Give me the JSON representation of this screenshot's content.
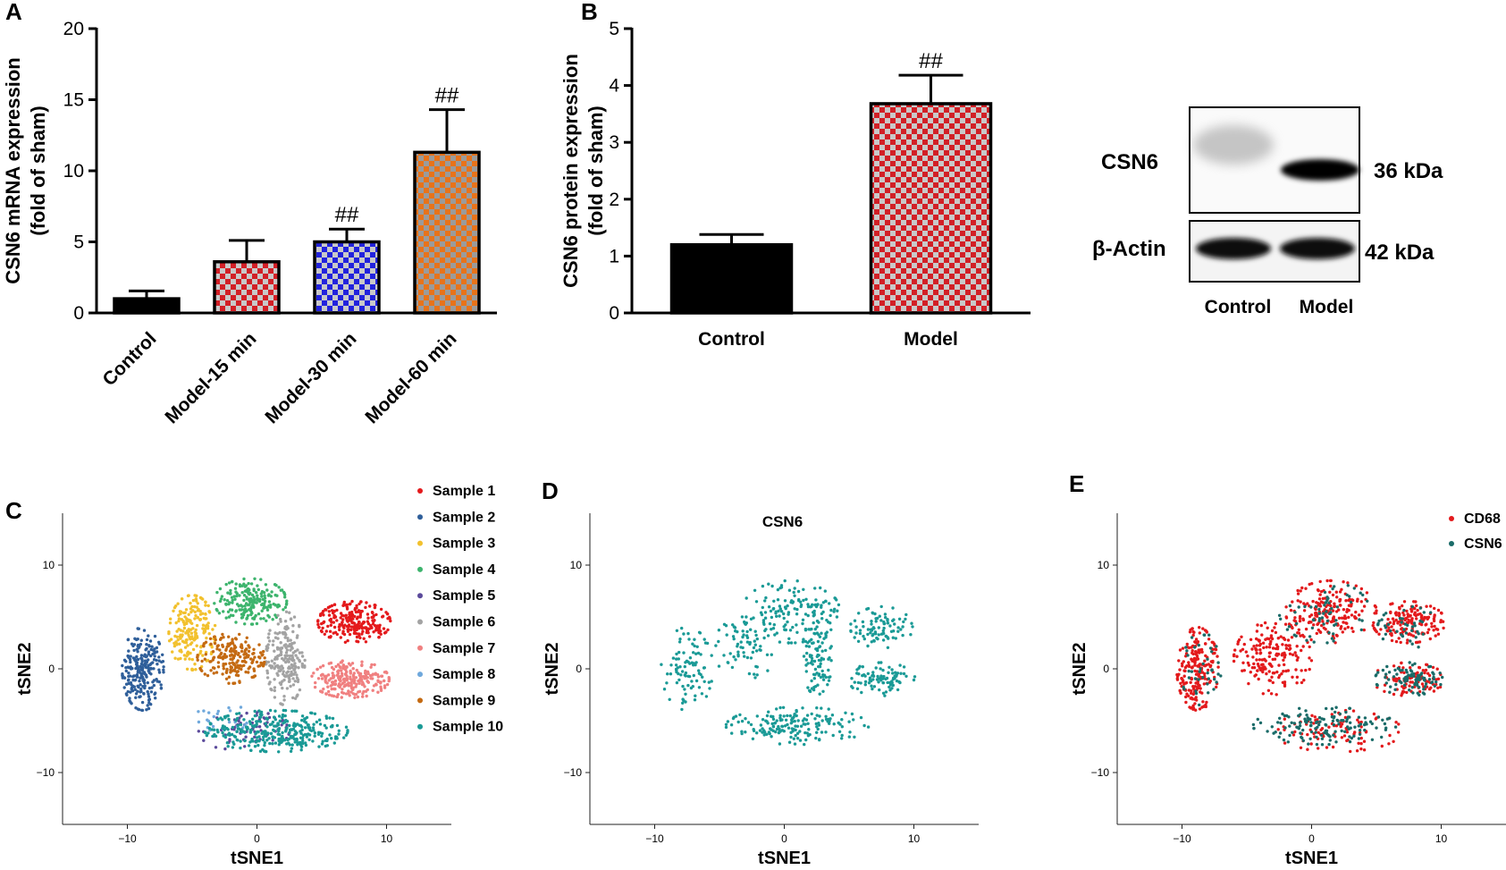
{
  "panels": {
    "A": "A",
    "B": "B",
    "C": "C",
    "D": "D",
    "E": "E"
  },
  "colors": {
    "checker_red": "#d21f26",
    "checker_blue": "#2222dd",
    "checker_orange": "#e8731a",
    "checker_light": "#c9c9c9",
    "teal": "#1a9a96",
    "red": "#e31a1c",
    "black": "#000000"
  },
  "chart_data": [
    {
      "panel": "A",
      "type": "bar",
      "categories": [
        "Control",
        "Model-15 min",
        "Model-30 min",
        "Model-60 min"
      ],
      "values": [
        1.0,
        3.6,
        5.0,
        11.3
      ],
      "errors": [
        0.55,
        1.5,
        0.9,
        3.0
      ],
      "significance": [
        "",
        "",
        "##",
        "##"
      ],
      "fills": [
        "solid-black",
        "checker-red",
        "checker-blue",
        "checker-orange"
      ],
      "ylabel": [
        "CSN6 mRNA expression",
        "(fold of sham)"
      ],
      "ylim": [
        0,
        20
      ],
      "yticks": [
        "0",
        "5",
        "10",
        "15",
        "20"
      ]
    },
    {
      "panel": "B",
      "type": "bar",
      "categories": [
        "Control",
        "Model"
      ],
      "values": [
        1.2,
        3.68
      ],
      "errors": [
        0.18,
        0.5
      ],
      "significance": [
        "",
        "##"
      ],
      "fills": [
        "solid-black",
        "checker-red"
      ],
      "ylabel": [
        "CSN6 protein expression",
        "(fold of sham)"
      ],
      "ylim": [
        0,
        5
      ],
      "yticks": [
        "0",
        "1",
        "2",
        "3",
        "4",
        "5"
      ]
    },
    {
      "panel": "C",
      "type": "scatter",
      "xlabel": "tSNE1",
      "ylabel": "tSNE2",
      "xlim": [
        -15,
        15
      ],
      "ylim": [
        -15,
        15
      ],
      "xticks": [
        "−10",
        "0",
        "10"
      ],
      "yticks": [
        "10",
        "0",
        "−10"
      ],
      "legend_position": "right",
      "series": [
        {
          "name": "Sample 1",
          "color": "#e41a1c"
        },
        {
          "name": "Sample 2",
          "color": "#2f5f9a"
        },
        {
          "name": "Sample 3",
          "color": "#f2c12e"
        },
        {
          "name": "Sample 4",
          "color": "#3db46d"
        },
        {
          "name": "Sample 5",
          "color": "#5b4a9b"
        },
        {
          "name": "Sample 6",
          "color": "#a3a3a3"
        },
        {
          "name": "Sample 7",
          "color": "#f08080"
        },
        {
          "name": "Sample 8",
          "color": "#6fa8dc"
        },
        {
          "name": "Sample 9",
          "color": "#c46a12"
        },
        {
          "name": "Sample 10",
          "color": "#1a9a96"
        }
      ],
      "clusters": [
        {
          "series": 0,
          "cx": 7.5,
          "cy": 4.5,
          "rx": 2.8,
          "ry": 2.0,
          "n": 240
        },
        {
          "series": 1,
          "cx": -8.8,
          "cy": 0.0,
          "rx": 1.6,
          "ry": 4.0,
          "n": 240
        },
        {
          "series": 2,
          "cx": -5.0,
          "cy": 3.5,
          "rx": 1.8,
          "ry": 3.6,
          "n": 200
        },
        {
          "series": 3,
          "cx": -0.5,
          "cy": 6.5,
          "rx": 2.8,
          "ry": 2.2,
          "n": 200
        },
        {
          "series": 4,
          "cx": -1.0,
          "cy": -6.0,
          "rx": 3.5,
          "ry": 2.0,
          "n": 70
        },
        {
          "series": 5,
          "cx": 2.2,
          "cy": 1.0,
          "rx": 1.5,
          "ry": 4.5,
          "n": 200
        },
        {
          "series": 6,
          "cx": 7.2,
          "cy": -1.0,
          "rx": 3.0,
          "ry": 1.8,
          "n": 240
        },
        {
          "series": 7,
          "cx": -2.5,
          "cy": -5.0,
          "rx": 2.5,
          "ry": 1.5,
          "n": 25
        },
        {
          "series": 8,
          "cx": -2.0,
          "cy": 1.0,
          "rx": 2.6,
          "ry": 2.4,
          "n": 200
        },
        {
          "series": 9,
          "cx": 1.5,
          "cy": -6.0,
          "rx": 5.5,
          "ry": 2.0,
          "n": 330
        }
      ]
    },
    {
      "panel": "D",
      "type": "scatter",
      "title": "CSN6",
      "xlabel": "tSNE1",
      "ylabel": "tSNE2",
      "xlim": [
        -15,
        15
      ],
      "ylim": [
        -15,
        15
      ],
      "xticks": [
        "−10",
        "0",
        "10"
      ],
      "yticks": [
        "10",
        "0",
        "−10"
      ],
      "series": [
        {
          "color": "#1a9a96"
        }
      ],
      "clusters": [
        {
          "cx": 0.5,
          "cy": 5.5,
          "rx": 3.8,
          "ry": 3.0,
          "n": 150
        },
        {
          "cx": 7.5,
          "cy": 4.0,
          "rx": 2.4,
          "ry": 2.0,
          "n": 90
        },
        {
          "cx": 7.5,
          "cy": -1.0,
          "rx": 2.6,
          "ry": 1.6,
          "n": 90
        },
        {
          "cx": 1.0,
          "cy": -5.5,
          "rx": 5.5,
          "ry": 1.8,
          "n": 170
        },
        {
          "cx": -7.5,
          "cy": 0.0,
          "rx": 2.0,
          "ry": 4.0,
          "n": 90
        },
        {
          "cx": 2.5,
          "cy": 1.0,
          "rx": 1.2,
          "ry": 3.5,
          "n": 90
        },
        {
          "cx": -3.0,
          "cy": 2.0,
          "rx": 2.5,
          "ry": 3.0,
          "n": 70
        }
      ]
    },
    {
      "panel": "E",
      "type": "scatter",
      "xlabel": "tSNE1",
      "ylabel": "tSNE2",
      "xlim": [
        -15,
        15
      ],
      "ylim": [
        -15,
        15
      ],
      "xticks": [
        "−10",
        "0",
        "10"
      ],
      "yticks": [
        "10",
        "0",
        "−10"
      ],
      "legend_position": "top-right",
      "series": [
        {
          "name": "CD68",
          "color": "#e31a1c"
        },
        {
          "name": "CSN6",
          "color": "#1a6b68"
        }
      ],
      "clusters": [
        {
          "series": 0,
          "cx": -8.8,
          "cy": 0.0,
          "rx": 1.6,
          "ry": 4.0,
          "n": 200
        },
        {
          "series": 0,
          "cx": 7.5,
          "cy": 4.5,
          "rx": 2.8,
          "ry": 2.0,
          "n": 160
        },
        {
          "series": 0,
          "cx": 1.5,
          "cy": 5.5,
          "rx": 3.5,
          "ry": 3.0,
          "n": 200
        },
        {
          "series": 0,
          "cx": -3.0,
          "cy": 1.0,
          "rx": 3.0,
          "ry": 3.5,
          "n": 180
        },
        {
          "series": 0,
          "cx": 7.5,
          "cy": -1.0,
          "rx": 2.8,
          "ry": 1.6,
          "n": 90
        },
        {
          "series": 0,
          "cx": 2.0,
          "cy": -6.0,
          "rx": 5.0,
          "ry": 2.0,
          "n": 90
        },
        {
          "series": 1,
          "cx": 7.5,
          "cy": -1.0,
          "rx": 2.6,
          "ry": 1.6,
          "n": 90
        },
        {
          "series": 1,
          "cx": 1.0,
          "cy": -5.5,
          "rx": 5.5,
          "ry": 1.8,
          "n": 140
        },
        {
          "series": 1,
          "cx": 1.0,
          "cy": 5.5,
          "rx": 3.5,
          "ry": 3.0,
          "n": 60
        },
        {
          "series": 1,
          "cx": 7.5,
          "cy": 4.0,
          "rx": 2.4,
          "ry": 2.0,
          "n": 40
        },
        {
          "series": 1,
          "cx": -8.5,
          "cy": 0.0,
          "rx": 1.6,
          "ry": 3.5,
          "n": 40
        }
      ]
    }
  ],
  "blot": {
    "bands": [
      "CSN6",
      "β-Actin"
    ],
    "sizes": [
      "36 kDa",
      "42 kDa"
    ],
    "lanes": [
      "Control",
      "Model"
    ]
  }
}
